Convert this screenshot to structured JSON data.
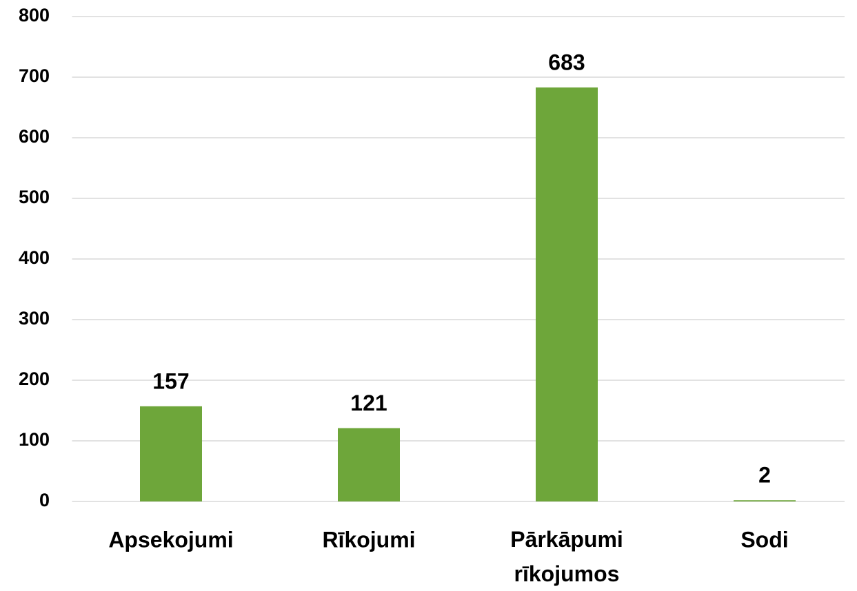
{
  "chart_data": {
    "type": "bar",
    "categories": [
      "Apsekojumi",
      "Rīkojumi",
      "Pārkāpumi rīkojumos",
      "Sodi"
    ],
    "values": [
      157,
      121,
      683,
      2
    ],
    "color": "#6ea63a",
    "ylim": [
      0,
      800
    ],
    "yticks": [
      0,
      100,
      200,
      300,
      400,
      500,
      600,
      700,
      800
    ],
    "grid": true
  }
}
